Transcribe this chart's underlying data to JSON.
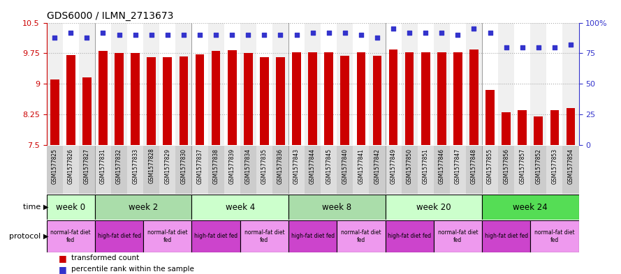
{
  "title": "GDS6000 / ILMN_2713673",
  "samples": [
    "GSM1577825",
    "GSM1577826",
    "GSM1577827",
    "GSM1577831",
    "GSM1577832",
    "GSM1577833",
    "GSM1577828",
    "GSM1577829",
    "GSM1577830",
    "GSM1577837",
    "GSM1577838",
    "GSM1577839",
    "GSM1577834",
    "GSM1577835",
    "GSM1577836",
    "GSM1577843",
    "GSM1577844",
    "GSM1577845",
    "GSM1577840",
    "GSM1577841",
    "GSM1577842",
    "GSM1577849",
    "GSM1577850",
    "GSM1577851",
    "GSM1577846",
    "GSM1577847",
    "GSM1577848",
    "GSM1577855",
    "GSM1577856",
    "GSM1577857",
    "GSM1577852",
    "GSM1577853",
    "GSM1577854"
  ],
  "bar_values": [
    9.1,
    9.7,
    9.15,
    9.8,
    9.75,
    9.75,
    9.65,
    9.65,
    9.67,
    9.72,
    9.8,
    9.82,
    9.75,
    9.65,
    9.65,
    9.77,
    9.77,
    9.77,
    9.68,
    9.77,
    9.68,
    9.84,
    9.77,
    9.77,
    9.77,
    9.77,
    9.84,
    8.85,
    8.3,
    8.35,
    8.2,
    8.35,
    8.4
  ],
  "dot_values": [
    88,
    92,
    88,
    92,
    90,
    90,
    90,
    90,
    90,
    90,
    90,
    90,
    90,
    90,
    90,
    90,
    92,
    92,
    92,
    90,
    88,
    95,
    92,
    92,
    92,
    90,
    95,
    92,
    80,
    80,
    80,
    80,
    82
  ],
  "ylim_left": [
    7.5,
    10.5
  ],
  "ylim_right": [
    0,
    100
  ],
  "yticks_left": [
    7.5,
    8.25,
    9.0,
    9.75,
    10.5
  ],
  "yticks_right": [
    0,
    25,
    50,
    75,
    100
  ],
  "bar_color": "#cc0000",
  "dot_color": "#3333cc",
  "grid_color": "#888888",
  "bg_main": "#ffffff",
  "bg_col_alt": "#eeeeee",
  "time_groups": [
    {
      "label": "week 0",
      "start": 0,
      "end": 3,
      "color": "#ccffcc"
    },
    {
      "label": "week 2",
      "start": 3,
      "end": 9,
      "color": "#aaddaa"
    },
    {
      "label": "week 4",
      "start": 9,
      "end": 15,
      "color": "#ccffcc"
    },
    {
      "label": "week 8",
      "start": 15,
      "end": 21,
      "color": "#aaddaa"
    },
    {
      "label": "week 20",
      "start": 21,
      "end": 27,
      "color": "#ccffcc"
    },
    {
      "label": "week 24",
      "start": 27,
      "end": 33,
      "color": "#55dd55"
    }
  ],
  "protocol_groups": [
    {
      "label": "normal-fat diet\nfed",
      "start": 0,
      "end": 3,
      "color": "#ee99ee"
    },
    {
      "label": "high-fat diet fed",
      "start": 3,
      "end": 6,
      "color": "#cc44cc"
    },
    {
      "label": "normal-fat diet\nfed",
      "start": 6,
      "end": 9,
      "color": "#ee99ee"
    },
    {
      "label": "high-fat diet fed",
      "start": 9,
      "end": 12,
      "color": "#cc44cc"
    },
    {
      "label": "normal-fat diet\nfed",
      "start": 12,
      "end": 15,
      "color": "#ee99ee"
    },
    {
      "label": "high-fat diet fed",
      "start": 15,
      "end": 18,
      "color": "#cc44cc"
    },
    {
      "label": "normal-fat diet\nfed",
      "start": 18,
      "end": 21,
      "color": "#ee99ee"
    },
    {
      "label": "high-fat diet fed",
      "start": 21,
      "end": 24,
      "color": "#cc44cc"
    },
    {
      "label": "normal-fat diet\nfed",
      "start": 24,
      "end": 27,
      "color": "#ee99ee"
    },
    {
      "label": "high-fat diet fed",
      "start": 27,
      "end": 30,
      "color": "#cc44cc"
    },
    {
      "label": "normal-fat diet\nfed",
      "start": 30,
      "end": 33,
      "color": "#ee99ee"
    }
  ],
  "legend_bar_label": "transformed count",
  "legend_dot_label": "percentile rank within the sample",
  "axis_color_left": "#cc0000",
  "axis_color_right": "#3333cc",
  "title_fontsize": 10,
  "col_bg_even": "#f0f0f0",
  "col_bg_odd": "#ffffff"
}
